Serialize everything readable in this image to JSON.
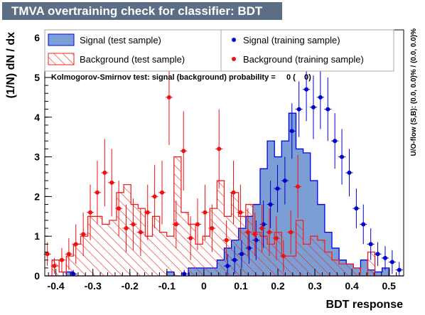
{
  "title": "TMVA overtraining check for classifier: BDT",
  "chart_data": {
    "type": "histogram",
    "title": "TMVA overtraining check for classifier: BDT",
    "xlabel": "BDT response",
    "ylabel": "(1/N) dN / dx",
    "xlim": [
      -0.43,
      0.54
    ],
    "ylim": [
      0,
      6.2
    ],
    "x_ticks": [
      "-0.4",
      "-0.3",
      "-0.2",
      "-0.1",
      "0",
      "0.1",
      "0.2",
      "0.3",
      "0.4",
      "0.5"
    ],
    "y_ticks": [
      "0",
      "1",
      "2",
      "3",
      "4",
      "5",
      "6"
    ],
    "bin_width": 0.0194,
    "signal_test": [
      0,
      0,
      0,
      0.1,
      0,
      0,
      0,
      0,
      0,
      0,
      0,
      0,
      0,
      0,
      0,
      0,
      0,
      0.1,
      0,
      0,
      0.2,
      0.2,
      0.2,
      0.2,
      0.4,
      0.7,
      0.9,
      1.2,
      1.5,
      1.8,
      2.7,
      3.4,
      3.0,
      3.4,
      4.1,
      3.2,
      3.1,
      2.4,
      1.8,
      1.1,
      0.7,
      0.4,
      0.3,
      0.2,
      0.4,
      0.15,
      0.1,
      0.2,
      0,
      0
    ],
    "background_test": [
      0,
      0.4,
      0.1,
      0.5,
      0.8,
      1.0,
      1.5,
      1.5,
      1.3,
      1.4,
      2.1,
      2.3,
      1.8,
      1.7,
      1.0,
      1.5,
      1.1,
      1.0,
      3.0,
      1.6,
      1.3,
      0.8,
      1.0,
      1.7,
      2.4,
      1.5,
      2.1,
      1.5,
      1.8,
      1.1,
      1.0,
      0.8,
      1.1,
      0.5,
      0.5,
      1.4,
      0.8,
      1.0,
      0.9,
      0.6,
      0.4,
      0.3,
      0.3,
      0.2,
      0,
      0.6,
      0,
      0,
      0,
      0
    ],
    "signal_train": {
      "x": [
        -0.353,
        -0.053,
        0.064,
        0.083,
        0.102,
        0.122,
        0.141,
        0.161,
        0.18,
        0.199,
        0.219,
        0.238,
        0.257,
        0.277,
        0.296,
        0.315,
        0.335,
        0.354,
        0.373,
        0.393,
        0.412,
        0.431,
        0.451,
        0.47,
        0.49,
        0.509,
        0.528
      ],
      "y": [
        0.05,
        0.05,
        0.25,
        0.4,
        0.55,
        0.7,
        0.9,
        1.3,
        1.8,
        2.2,
        2.4,
        3.65,
        4.2,
        4.7,
        4.25,
        4.5,
        4.2,
        3.4,
        3.0,
        2.6,
        1.7,
        1.3,
        0.8,
        0.55,
        0.45,
        0.35,
        0.15
      ],
      "yerr": [
        0.1,
        0.1,
        0.3,
        0.35,
        0.35,
        0.4,
        0.5,
        0.6,
        0.6,
        0.6,
        0.6,
        0.7,
        0.7,
        0.8,
        0.8,
        0.8,
        0.8,
        0.7,
        0.7,
        0.6,
        0.5,
        0.5,
        0.4,
        0.3,
        0.3,
        0.3,
        0.2
      ]
    },
    "background_train": {
      "x": [
        -0.423,
        -0.404,
        -0.384,
        -0.365,
        -0.346,
        -0.326,
        -0.307,
        -0.288,
        -0.268,
        -0.249,
        -0.23,
        -0.21,
        -0.191,
        -0.171,
        -0.152,
        -0.133,
        -0.113,
        -0.094,
        -0.075,
        -0.055,
        -0.036,
        -0.017,
        0.003,
        0.022,
        0.041,
        0.061,
        0.08,
        0.099,
        0.119,
        0.138,
        0.157,
        0.177,
        0.196,
        0.215,
        0.235,
        0.254
      ],
      "y": [
        0.55,
        0.25,
        0.4,
        0.55,
        0.8,
        1.05,
        1.6,
        2.1,
        2.6,
        2.35,
        1.7,
        1.2,
        1.3,
        1.1,
        1.6,
        2.0,
        2.1,
        4.5,
        1.3,
        3.15,
        0.95,
        1.3,
        1.6,
        1.2,
        3.2,
        0.9,
        2.1,
        1.6,
        1.1,
        1.05,
        1.2,
        1.1,
        0.95,
        0.5,
        1.1,
        2.25
      ],
      "yerr": [
        0.3,
        0.2,
        0.3,
        0.4,
        0.5,
        0.55,
        0.7,
        0.8,
        0.85,
        0.85,
        0.7,
        0.6,
        0.65,
        0.6,
        0.7,
        0.8,
        0.8,
        1.2,
        0.6,
        1.0,
        0.55,
        0.65,
        0.7,
        0.6,
        1.0,
        0.5,
        0.8,
        0.7,
        0.6,
        0.55,
        0.6,
        0.6,
        0.55,
        0.4,
        0.55,
        0.8
      ]
    },
    "legend": {
      "signal_test": "Signal (test sample)",
      "background_test": "Background (test sample)",
      "signal_train": "Signal (training sample)",
      "background_train": "Background (training sample)",
      "placement": "top"
    },
    "ks_text": "Kolmogorov-Smirnov test: signal (background) probability =     0 (    0)",
    "overflow_text": "U/O-flow (S,B): (0.0, 0.0)% / (0.0, 0.0)%",
    "colors": {
      "signal_fill": "#7b9fd4",
      "signal_line": "#0000ee",
      "signal_marker": "#0000cc",
      "background_hatch": "#ee2222",
      "background_marker": "#ee1111"
    }
  }
}
